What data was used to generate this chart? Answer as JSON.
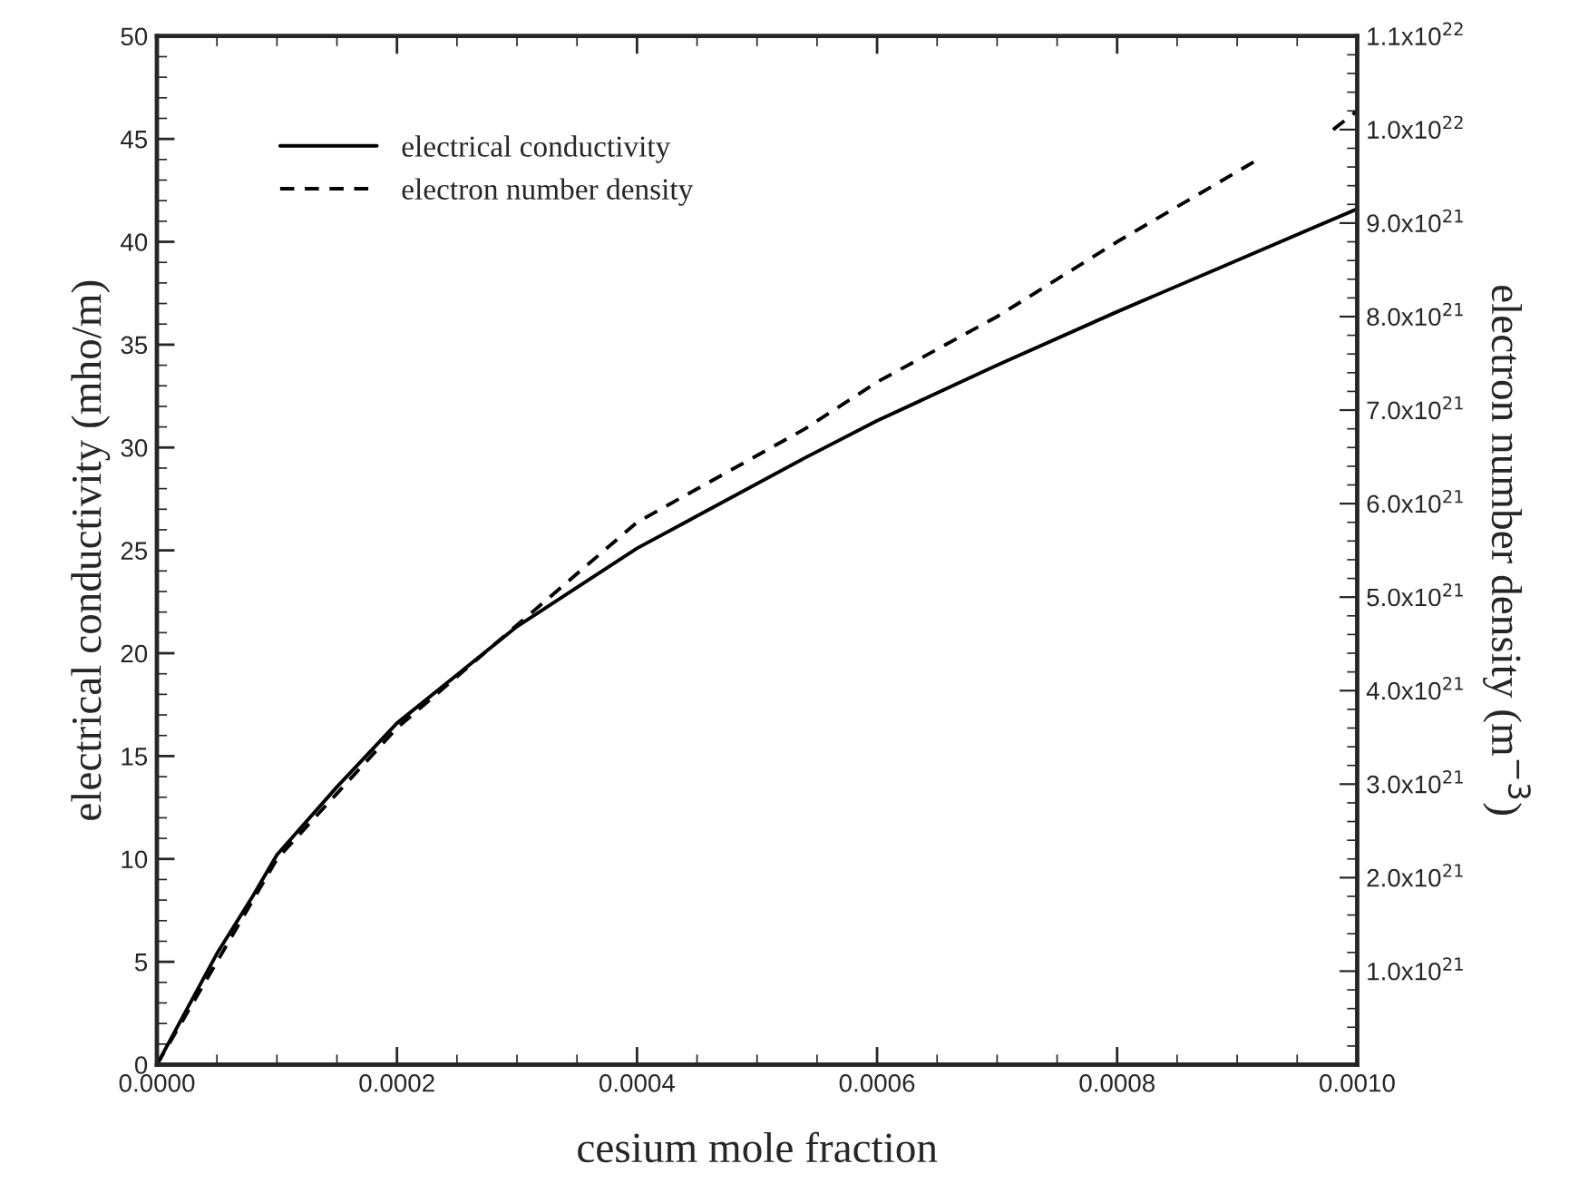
{
  "chart_data": {
    "type": "line",
    "xlabel": "cesium mole fraction",
    "ylabel": "electrical conductivity (mho/m)",
    "y2label": "electron number density (m$^{−3}$)",
    "xlim": [
      0,
      0.001
    ],
    "xticks": [
      {
        "value": 0,
        "label": "0.0000"
      },
      {
        "value": 0.0002,
        "label": "0.0002"
      },
      {
        "value": 0.0004,
        "label": "0.0004"
      },
      {
        "value": 0.0006,
        "label": "0.0006"
      },
      {
        "value": 0.0008,
        "label": "0.0008"
      },
      {
        "value": 0.001,
        "label": "0.0010"
      }
    ],
    "ylim": [
      0,
      50
    ],
    "yticks": [
      0,
      5,
      10,
      15,
      20,
      25,
      30,
      35,
      40,
      45,
      50
    ],
    "y2lim": [
      0,
      1.1e+22
    ],
    "y2ticks": [
      {
        "value": 1e+21,
        "label": "1.0x10$^{21}$"
      },
      {
        "value": 2e+21,
        "label": "2.0x10$^{21}$"
      },
      {
        "value": 3e+21,
        "label": "3.0x10$^{21}$"
      },
      {
        "value": 4e+21,
        "label": "4.0x10$^{21}$"
      },
      {
        "value": 5e+21,
        "label": "5.0x10$^{21}$"
      },
      {
        "value": 6e+21,
        "label": "6.0x10$^{21}$"
      },
      {
        "value": 7e+21,
        "label": "7.0x10$^{21}$"
      },
      {
        "value": 8e+21,
        "label": "8.0x10$^{21}$"
      },
      {
        "value": 9e+21,
        "label": "9.0x10$^{21}$"
      },
      {
        "value": 1e+22,
        "label": "1.0x10$^{22}$"
      },
      {
        "value": 1.1e+22,
        "label": "1.1x10$^{22}$"
      }
    ],
    "legend": "top left",
    "grid": false,
    "marker": "none",
    "series": [
      {
        "name": "electrical conductivity",
        "color": "#000000",
        "line_style": "solid",
        "x": [
          0,
          5e-05,
          8e-05,
          0.0001,
          0.00015,
          0.0002,
          0.0003,
          0.0004,
          0.00054,
          0.0006,
          0.0007,
          0.0008,
          0.0009,
          0.001
        ],
        "values": [
          0,
          5.4,
          8.2,
          10.2,
          13.5,
          16.6,
          21.3,
          25.1,
          29.5,
          31.3,
          34.0,
          36.6,
          39.1,
          41.6
        ]
      },
      {
        "name": "electron number density",
        "color": "#000000",
        "line_style": "dashed",
        "axis": "y2",
        "x": [
          0,
          5e-05,
          0.0001,
          0.00015,
          0.0002,
          0.0003,
          0.0004,
          0.00054,
          0.0006,
          0.0007,
          0.0008,
          0.00092,
          0.00095,
          0.00098,
          0.001
        ],
        "values": [
          0,
          1.1e+21,
          2.2e+21,
          2.9e+21,
          3.6e+21,
          4.7e+21,
          5.8e+21,
          6.8e+21,
          7.3e+21,
          8e+21,
          8.8e+21,
          9.7e+21,
          null,
          1e+22,
          1.02e+22
        ]
      }
    ]
  }
}
